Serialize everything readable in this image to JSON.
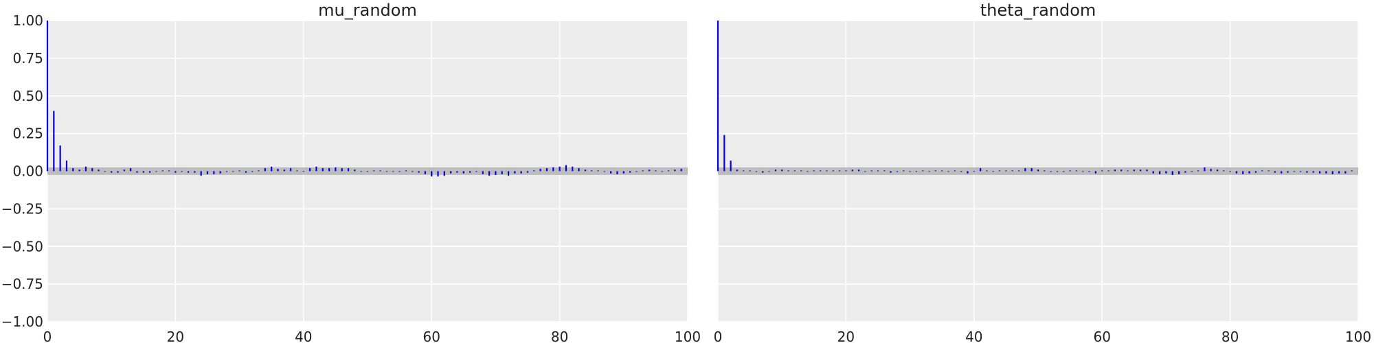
{
  "chart_data": [
    {
      "type": "bar",
      "subtype": "autocorrelation",
      "title": "mu_random",
      "xlabel": "",
      "ylabel": "",
      "xlim": [
        0,
        100
      ],
      "ylim": [
        -1.0,
        1.0
      ],
      "x_ticks": [
        "0",
        "20",
        "40",
        "60",
        "80",
        "100"
      ],
      "y_ticks": [
        "1.00",
        "0.75",
        "0.50",
        "0.25",
        "0.00",
        "−0.25",
        "−0.50",
        "−0.75",
        "−1.00"
      ],
      "grid": true,
      "confidence_band": 0.025,
      "lags": [
        0,
        1,
        2,
        3,
        4,
        5,
        6,
        7,
        8,
        9,
        10,
        11,
        12,
        13,
        14,
        15,
        16,
        17,
        18,
        19,
        20,
        21,
        22,
        23,
        24,
        25,
        26,
        27,
        28,
        29,
        30,
        31,
        32,
        33,
        34,
        35,
        36,
        37,
        38,
        39,
        40,
        41,
        42,
        43,
        44,
        45,
        46,
        47,
        48,
        49,
        50,
        51,
        52,
        53,
        54,
        55,
        56,
        57,
        58,
        59,
        60,
        61,
        62,
        63,
        64,
        65,
        66,
        67,
        68,
        69,
        70,
        71,
        72,
        73,
        74,
        75,
        76,
        77,
        78,
        79,
        80,
        81,
        82,
        83,
        84,
        85,
        86,
        87,
        88,
        89,
        90,
        91,
        92,
        93,
        94,
        95,
        96,
        97,
        98,
        99
      ],
      "values": [
        1.0,
        0.4,
        0.17,
        0.07,
        0.02,
        0.01,
        0.03,
        0.02,
        0.01,
        0.0,
        -0.01,
        -0.01,
        0.01,
        0.02,
        -0.01,
        -0.01,
        -0.01,
        0.0,
        0.005,
        0.005,
        -0.01,
        -0.005,
        -0.01,
        -0.01,
        -0.03,
        -0.02,
        -0.02,
        -0.015,
        -0.005,
        0.0,
        0.005,
        -0.01,
        -0.005,
        0.005,
        0.02,
        0.03,
        0.015,
        0.01,
        0.02,
        0.005,
        0.0,
        0.02,
        0.03,
        0.02,
        0.02,
        0.025,
        0.02,
        0.02,
        0.01,
        0.0,
        0.0,
        0.005,
        0.005,
        0.0,
        0.0,
        0.0,
        0.005,
        -0.005,
        -0.01,
        -0.02,
        -0.035,
        -0.035,
        -0.03,
        -0.015,
        -0.01,
        -0.015,
        -0.01,
        -0.005,
        -0.02,
        -0.03,
        -0.025,
        -0.02,
        -0.03,
        -0.015,
        -0.015,
        -0.01,
        0.005,
        0.015,
        0.02,
        0.025,
        0.03,
        0.04,
        0.03,
        0.02,
        0.01,
        0.005,
        0.005,
        0.0,
        -0.015,
        -0.02,
        -0.015,
        -0.01,
        -0.005,
        0.005,
        0.01,
        0.005,
        0.0,
        0.005,
        0.01,
        0.015
      ],
      "colors": {
        "bars": "#0000ee",
        "band": "#bdbdbd",
        "background": "#ececec",
        "grid": "#ffffff"
      }
    },
    {
      "type": "bar",
      "subtype": "autocorrelation",
      "title": "theta_random",
      "xlabel": "",
      "ylabel": "",
      "xlim": [
        0,
        100
      ],
      "ylim": [
        -1.0,
        1.0
      ],
      "x_ticks": [
        "0",
        "20",
        "40",
        "60",
        "80",
        "100"
      ],
      "y_ticks": [],
      "grid": true,
      "confidence_band": 0.025,
      "lags": [
        0,
        1,
        2,
        3,
        4,
        5,
        6,
        7,
        8,
        9,
        10,
        11,
        12,
        13,
        14,
        15,
        16,
        17,
        18,
        19,
        20,
        21,
        22,
        23,
        24,
        25,
        26,
        27,
        28,
        29,
        30,
        31,
        32,
        33,
        34,
        35,
        36,
        37,
        38,
        39,
        40,
        41,
        42,
        43,
        44,
        45,
        46,
        47,
        48,
        49,
        50,
        51,
        52,
        53,
        54,
        55,
        56,
        57,
        58,
        59,
        60,
        61,
        62,
        63,
        64,
        65,
        66,
        67,
        68,
        69,
        70,
        71,
        72,
        73,
        74,
        75,
        76,
        77,
        78,
        79,
        80,
        81,
        82,
        83,
        84,
        85,
        86,
        87,
        88,
        89,
        90,
        91,
        92,
        93,
        94,
        95,
        96,
        97,
        98,
        99
      ],
      "values": [
        1.0,
        0.24,
        0.07,
        0.01,
        0.005,
        0.005,
        -0.005,
        -0.01,
        0.0,
        0.01,
        0.01,
        0.005,
        0.005,
        0.005,
        0.0,
        0.005,
        0.005,
        0.005,
        0.005,
        0.005,
        0.005,
        0.01,
        0.01,
        0.0,
        0.005,
        0.005,
        0.005,
        -0.01,
        -0.005,
        0.005,
        0.0,
        0.0,
        0.005,
        0.0,
        0.005,
        0.005,
        0.0,
        0.005,
        -0.005,
        -0.015,
        0.0,
        0.02,
        0.005,
        0.0,
        0.005,
        0.005,
        0.005,
        0.005,
        0.02,
        0.02,
        0.01,
        0.005,
        -0.005,
        -0.005,
        -0.005,
        0.005,
        0.005,
        0.0,
        -0.005,
        -0.015,
        0.005,
        0.005,
        0.01,
        0.01,
        0.005,
        0.01,
        0.01,
        0.01,
        -0.015,
        -0.02,
        -0.015,
        -0.025,
        -0.02,
        -0.01,
        -0.005,
        0.005,
        0.025,
        0.015,
        0.01,
        0.005,
        -0.005,
        -0.015,
        -0.02,
        -0.015,
        -0.01,
        0.005,
        0.005,
        -0.01,
        -0.015,
        -0.01,
        0.0,
        -0.005,
        -0.01,
        -0.01,
        -0.015,
        -0.015,
        -0.02,
        -0.015,
        -0.015,
        0.005
      ],
      "colors": {
        "bars": "#0000ee",
        "band": "#bdbdbd",
        "background": "#ececec",
        "grid": "#ffffff"
      }
    }
  ]
}
